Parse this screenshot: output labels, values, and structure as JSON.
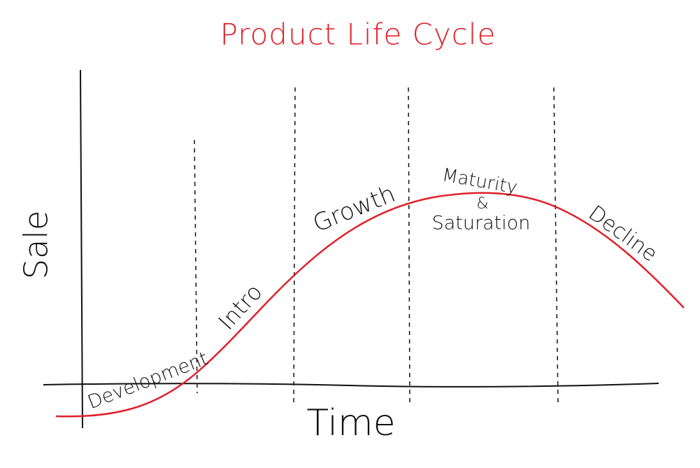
{
  "title": "Product Life Cycle",
  "axes": {
    "y_label": "Sale",
    "x_label": "Time"
  },
  "stages": [
    {
      "label": "Development"
    },
    {
      "label": "Intro"
    },
    {
      "label": "Growth"
    },
    {
      "lines": [
        "Maturity",
        "&",
        "Saturation"
      ]
    },
    {
      "label": "Decline"
    }
  ]
}
